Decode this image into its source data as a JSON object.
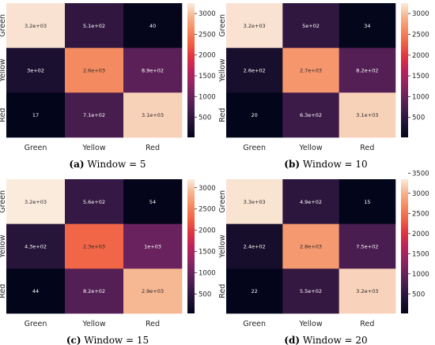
{
  "chart_data": [
    {
      "type": "heatmap",
      "caption": {
        "label": "(a)",
        "text": " Window = 5"
      },
      "xlabels": [
        "Green",
        "Yellow",
        "Red"
      ],
      "ylabels": [
        "Green",
        "Yellow",
        "Red"
      ],
      "values": [
        [
          3200,
          510,
          40
        ],
        [
          300,
          2600,
          890
        ],
        [
          17,
          710,
          3100
        ]
      ],
      "annotations": [
        [
          "3.2e+03",
          "5.1e+02",
          "40"
        ],
        [
          "3e+02",
          "2.6e+03",
          "8.9e+02"
        ],
        [
          "17",
          "7.1e+02",
          "3.1e+03"
        ]
      ],
      "colorbar": {
        "ticks": [
          500,
          1000,
          1500,
          2000,
          2500,
          3000
        ],
        "range": [
          17,
          3250
        ]
      }
    },
    {
      "type": "heatmap",
      "caption": {
        "label": "(b)",
        "text": " Window = 10"
      },
      "xlabels": [
        "Green",
        "Yellow",
        "Red"
      ],
      "ylabels": [
        "Green",
        "Yellow",
        "Red"
      ],
      "values": [
        [
          3200,
          500,
          34
        ],
        [
          260,
          2700,
          820
        ],
        [
          20,
          630,
          3100
        ]
      ],
      "annotations": [
        [
          "3.2e+03",
          "5e+02",
          "34"
        ],
        [
          "2.6e+02",
          "2.7e+03",
          "8.2e+02"
        ],
        [
          "20",
          "6.3e+02",
          "3.1e+03"
        ]
      ],
      "colorbar": {
        "ticks": [
          500,
          1000,
          1500,
          2000,
          2500,
          3000
        ],
        "range": [
          20,
          3250
        ]
      }
    },
    {
      "type": "heatmap",
      "caption": {
        "label": "(c)",
        "text": " Window = 15"
      },
      "xlabels": [
        "Green",
        "Yellow",
        "Red"
      ],
      "ylabels": [
        "Green",
        "Yellow",
        "Red"
      ],
      "values": [
        [
          3200,
          560,
          54
        ],
        [
          430,
          2300,
          1000
        ],
        [
          44,
          820,
          2900
        ]
      ],
      "annotations": [
        [
          "3.2e+03",
          "5.6e+02",
          "54"
        ],
        [
          "4.3e+02",
          "2.3e+03",
          "1e+03"
        ],
        [
          "44",
          "8.2e+02",
          "2.9e+03"
        ]
      ],
      "colorbar": {
        "ticks": [
          500,
          1000,
          1500,
          2000,
          2500,
          3000
        ],
        "range": [
          44,
          3200
        ]
      }
    },
    {
      "type": "heatmap",
      "caption": {
        "label": "(d)",
        "text": " Window = 20"
      },
      "xlabels": [
        "Green",
        "Yellow",
        "Red"
      ],
      "ylabels": [
        "Green",
        "Yellow",
        "Red"
      ],
      "values": [
        [
          3300,
          490,
          15
        ],
        [
          240,
          2800,
          750
        ],
        [
          22,
          550,
          3200
        ]
      ],
      "annotations": [
        [
          "3.3e+03",
          "4.9e+02",
          "15"
        ],
        [
          "2.4e+02",
          "2.8e+03",
          "7.5e+02"
        ],
        [
          "22",
          "5.5e+02",
          "3.2e+03"
        ]
      ],
      "colorbar": {
        "ticks": [
          500,
          1000,
          1500,
          2000,
          2500,
          3000,
          3500
        ],
        "range": [
          15,
          3350
        ]
      }
    }
  ]
}
